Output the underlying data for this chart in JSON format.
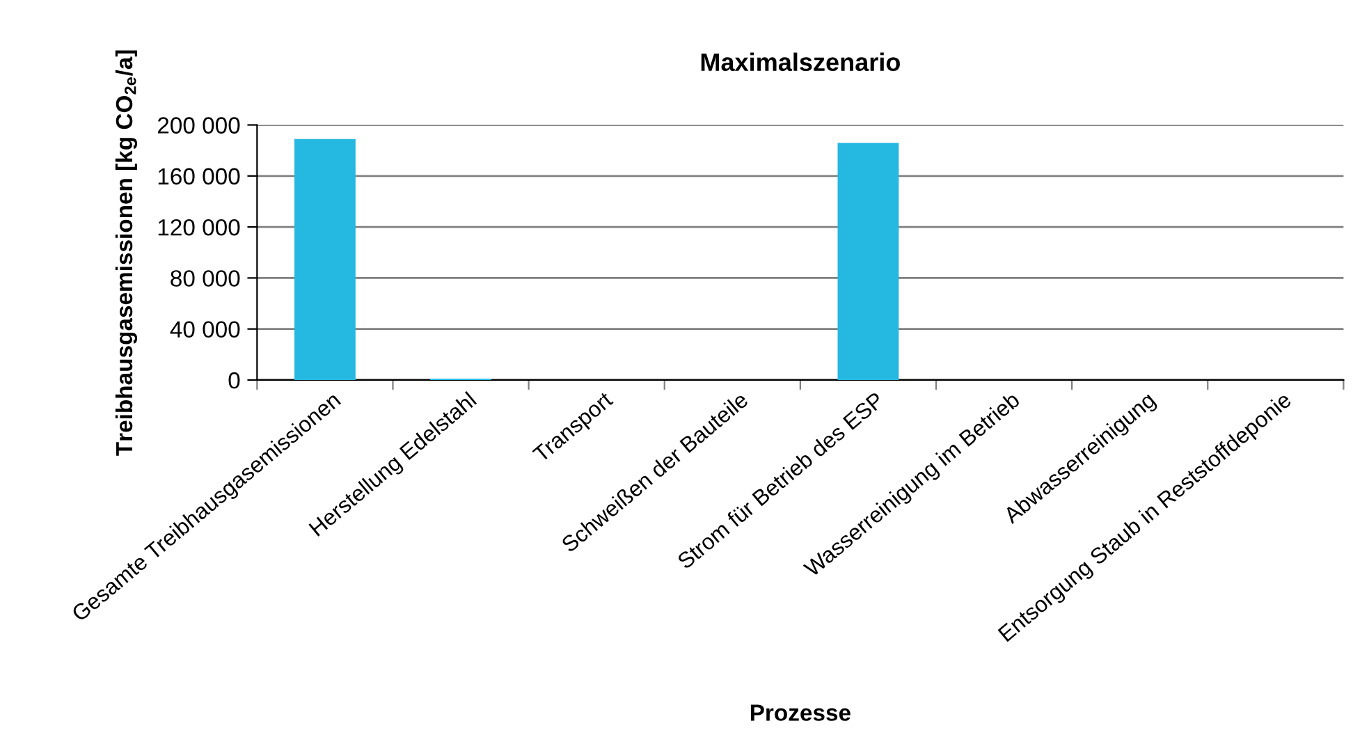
{
  "chart_data": {
    "type": "bar",
    "title": "Maximalszenario",
    "xlabel": "Prozesse",
    "ylabel": "Treibhausgasemissionen [kg CO$_{2e}$/a]",
    "categories": [
      "Gesamte Treibhausgasemissionen",
      "Herstellung Edelstahl",
      "Transport",
      "Schweißen der Bauteile",
      "Strom für Betrieb des ESP",
      "Wasserreinigung im Betrieb",
      "Abwasserreinigung",
      "Entsorgung Staub in Reststoffdeponie"
    ],
    "values": [
      189000,
      1000,
      0,
      0,
      186000,
      0,
      0,
      0
    ],
    "color": "#25b8e0",
    "ylim": [
      0,
      200000
    ],
    "yticks": [
      {
        "value": 0,
        "label": "0"
      },
      {
        "value": 40000,
        "label": "40 000"
      },
      {
        "value": 80000,
        "label": "80 000"
      },
      {
        "value": 120000,
        "label": "120 000"
      },
      {
        "value": 160000,
        "label": "160 000"
      },
      {
        "value": 200000,
        "label": "200 000"
      }
    ],
    "grid": "y"
  }
}
